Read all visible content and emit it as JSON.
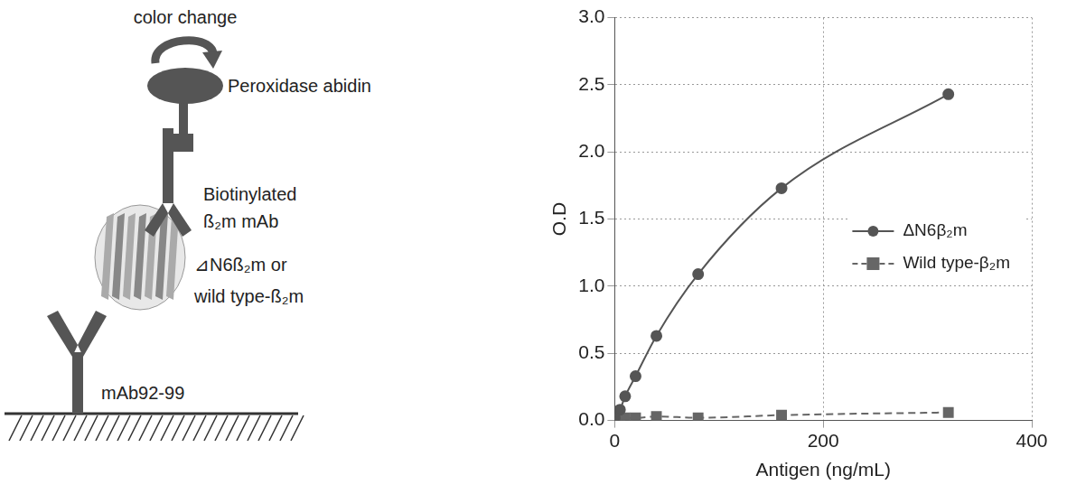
{
  "diagram": {
    "signal": "color change",
    "enzyme": "Peroxidase  abidin",
    "detection_antibody": [
      "Biotinylated",
      "ß₂m mAb"
    ],
    "antigen": [
      "⊿N6ß₂m  or",
      "wild type-ß₂m"
    ],
    "capture_antibody": "mAb92-99"
  },
  "chart_data": {
    "type": "line",
    "x_label": "Antigen (ng/mL)",
    "y_label": "O.D",
    "x": [
      0,
      5,
      10,
      20,
      40,
      80,
      160,
      320
    ],
    "series": [
      {
        "name": "ΔN6β₂m",
        "color": "#555555",
        "marker": "circle",
        "line_style": "solid",
        "values": [
          0.02,
          0.08,
          0.18,
          0.33,
          0.63,
          1.09,
          1.73,
          2.43
        ]
      },
      {
        "name": "Wild type-β₂m",
        "color": "#666666",
        "marker": "square",
        "line_style": "dashed",
        "values": [
          0.02,
          0.02,
          0.02,
          0.02,
          0.03,
          0.02,
          0.04,
          0.06
        ]
      }
    ],
    "xlim": [
      0,
      400
    ],
    "xticks": [
      0,
      200,
      400
    ],
    "ylim": [
      0,
      3
    ],
    "yticks": [
      {
        "value": 0,
        "label": "0.0"
      },
      0.5,
      {
        "value": 1,
        "label": "1.0"
      },
      1.5,
      {
        "value": 2,
        "label": "2.0"
      },
      2.5,
      {
        "value": 3,
        "label": "3.0"
      }
    ],
    "grid": true,
    "legend": "right"
  }
}
